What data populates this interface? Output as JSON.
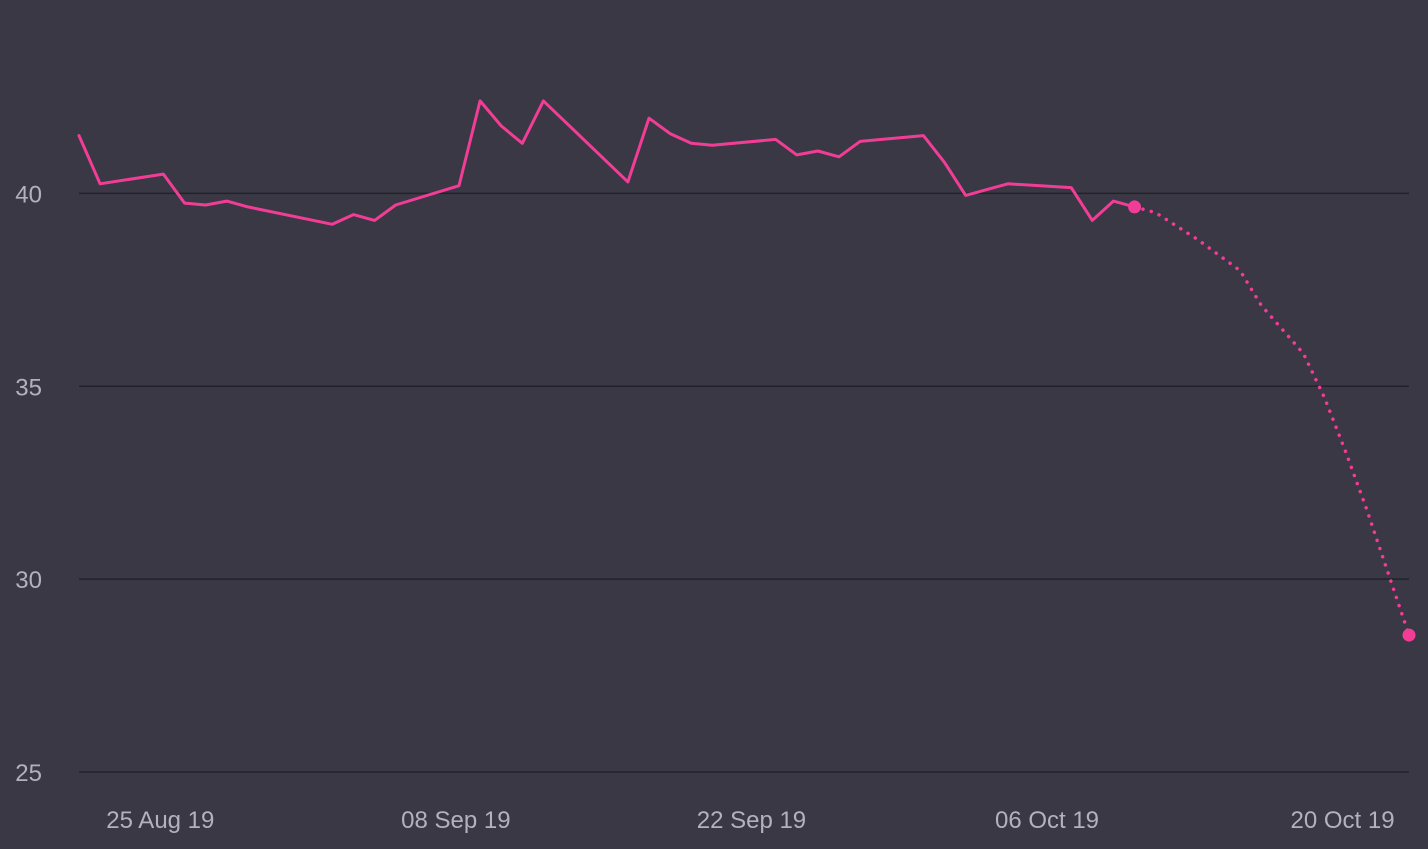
{
  "chart_data": {
    "type": "line",
    "title": "",
    "xlabel": "",
    "ylabel": "",
    "ylim": [
      25,
      44.6
    ],
    "xlim": [
      "2019-08-22",
      "2019-10-24"
    ],
    "grid": true,
    "legend": "none",
    "y_ticks": [
      25,
      30,
      35,
      40
    ],
    "x_ticks": [
      {
        "date": "2019-08-25",
        "label": "25 Aug 19"
      },
      {
        "date": "2019-09-08",
        "label": "08 Sep 19"
      },
      {
        "date": "2019-09-22",
        "label": "22 Sep 19"
      },
      {
        "date": "2019-10-06",
        "label": "06 Oct 19"
      },
      {
        "date": "2019-10-20",
        "label": "20 Oct 19"
      }
    ],
    "colors": {
      "background": "#393844",
      "grid": "#23222b",
      "series": "#f23d97",
      "tick_label": "#b3b1bd"
    },
    "series": [
      {
        "style": "solid",
        "points": [
          [
            "2019-08-22",
            41.5
          ],
          [
            "2019-08-23",
            40.25
          ],
          [
            "2019-08-26",
            40.5
          ],
          [
            "2019-08-27",
            39.75
          ],
          [
            "2019-08-28",
            39.7
          ],
          [
            "2019-08-29",
            39.8
          ],
          [
            "2019-08-30",
            39.65
          ],
          [
            "2019-09-03",
            39.2
          ],
          [
            "2019-09-04",
            39.45
          ],
          [
            "2019-09-05",
            39.3
          ],
          [
            "2019-09-06",
            39.7
          ],
          [
            "2019-09-09",
            40.2
          ],
          [
            "2019-09-10",
            42.4
          ],
          [
            "2019-09-11",
            41.75
          ],
          [
            "2019-09-12",
            41.3
          ],
          [
            "2019-09-13",
            42.4
          ],
          [
            "2019-09-17",
            40.3
          ],
          [
            "2019-09-18",
            41.95
          ],
          [
            "2019-09-19",
            41.55
          ],
          [
            "2019-09-20",
            41.3
          ],
          [
            "2019-09-21",
            41.25
          ],
          [
            "2019-09-24",
            41.4
          ],
          [
            "2019-09-25",
            41.0
          ],
          [
            "2019-09-26",
            41.1
          ],
          [
            "2019-09-27",
            40.95
          ],
          [
            "2019-09-28",
            41.35
          ],
          [
            "2019-10-01",
            41.5
          ],
          [
            "2019-10-02",
            40.8
          ],
          [
            "2019-10-03",
            39.95
          ],
          [
            "2019-10-04",
            40.1
          ],
          [
            "2019-10-05",
            40.25
          ],
          [
            "2019-10-08",
            40.15
          ],
          [
            "2019-10-09",
            39.3
          ],
          [
            "2019-10-10",
            39.8
          ],
          [
            "2019-10-11",
            39.65
          ]
        ]
      },
      {
        "style": "dotted",
        "points": [
          [
            "2019-10-11",
            39.65
          ],
          [
            "2019-10-12",
            39.5
          ],
          [
            "2019-10-14",
            38.8
          ],
          [
            "2019-10-16",
            38.0
          ],
          [
            "2019-10-17",
            37.1
          ],
          [
            "2019-10-19",
            35.85
          ],
          [
            "2019-10-20",
            34.7
          ],
          [
            "2019-10-21",
            33.3
          ],
          [
            "2019-10-22",
            31.8
          ],
          [
            "2019-10-24",
            28.55
          ]
        ],
        "end_markers": true
      }
    ]
  }
}
